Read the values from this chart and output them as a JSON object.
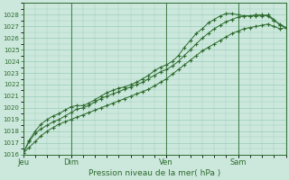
{
  "bg_color": "#cce8dc",
  "grid_color": "#99ccbb",
  "line_color": "#2d6a2d",
  "marker_color": "#2d6a2d",
  "xlabel": "Pression niveau de la mer( hPa )",
  "ylim": [
    1016,
    1029
  ],
  "yticks": [
    1016,
    1017,
    1018,
    1019,
    1020,
    1021,
    1022,
    1023,
    1024,
    1025,
    1026,
    1027,
    1028
  ],
  "day_labels": [
    "Jeu",
    "Dim",
    "Ven",
    "Sam"
  ],
  "day_positions": [
    0.0,
    0.182,
    0.545,
    0.818
  ],
  "total_hours": 264,
  "line1_x": [
    0,
    6,
    12,
    18,
    24,
    30,
    36,
    42,
    48,
    54,
    60,
    66,
    72,
    78,
    84,
    90,
    96,
    102,
    108,
    114,
    120,
    126,
    132,
    138,
    144,
    150,
    156,
    162,
    168,
    174,
    180,
    186,
    192,
    198,
    204,
    210,
    216,
    222,
    228,
    234,
    240,
    246,
    252,
    258,
    264
  ],
  "line1_y": [
    1016.1,
    1017.1,
    1017.8,
    1018.2,
    1018.5,
    1018.8,
    1019.0,
    1019.3,
    1019.6,
    1019.9,
    1020.0,
    1020.2,
    1020.5,
    1020.8,
    1021.0,
    1021.2,
    1021.4,
    1021.6,
    1021.8,
    1022.0,
    1022.2,
    1022.5,
    1022.8,
    1023.1,
    1023.3,
    1023.6,
    1024.0,
    1024.5,
    1025.0,
    1025.5,
    1026.0,
    1026.4,
    1026.8,
    1027.1,
    1027.4,
    1027.6,
    1027.8,
    1027.9,
    1027.9,
    1028.0,
    1028.0,
    1027.9,
    1027.5,
    1027.2,
    1026.9
  ],
  "line2_x": [
    0,
    6,
    12,
    18,
    24,
    30,
    36,
    42,
    48,
    54,
    60,
    66,
    72,
    78,
    84,
    90,
    96,
    102,
    108,
    114,
    120,
    126,
    132,
    138,
    144,
    150,
    156,
    162,
    168,
    174,
    180,
    186,
    192,
    198,
    204,
    210,
    216,
    222,
    228,
    234,
    240,
    246,
    252,
    258,
    264
  ],
  "line2_y": [
    1016.1,
    1017.2,
    1018.0,
    1018.6,
    1019.0,
    1019.3,
    1019.5,
    1019.8,
    1020.1,
    1020.2,
    1020.2,
    1020.4,
    1020.7,
    1021.0,
    1021.3,
    1021.5,
    1021.7,
    1021.8,
    1022.0,
    1022.2,
    1022.5,
    1022.8,
    1023.2,
    1023.5,
    1023.7,
    1024.0,
    1024.5,
    1025.2,
    1025.8,
    1026.4,
    1026.8,
    1027.3,
    1027.6,
    1027.9,
    1028.1,
    1028.1,
    1028.0,
    1027.9,
    1027.9,
    1027.9,
    1027.9,
    1028.0,
    1027.6,
    1027.1,
    1026.9
  ],
  "line3_x": [
    0,
    6,
    12,
    18,
    24,
    30,
    36,
    42,
    48,
    54,
    60,
    66,
    72,
    78,
    84,
    90,
    96,
    102,
    108,
    114,
    120,
    126,
    132,
    138,
    144,
    150,
    156,
    162,
    168,
    174,
    180,
    186,
    192,
    198,
    204,
    210,
    216,
    222,
    228,
    234,
    240,
    246,
    252,
    258,
    264
  ],
  "line3_y": [
    1016.1,
    1016.6,
    1017.1,
    1017.6,
    1018.0,
    1018.3,
    1018.6,
    1018.8,
    1019.0,
    1019.2,
    1019.4,
    1019.6,
    1019.8,
    1020.0,
    1020.2,
    1020.4,
    1020.6,
    1020.8,
    1021.0,
    1021.2,
    1021.4,
    1021.6,
    1021.9,
    1022.2,
    1022.5,
    1022.9,
    1023.3,
    1023.7,
    1024.1,
    1024.5,
    1024.9,
    1025.2,
    1025.5,
    1025.8,
    1026.1,
    1026.4,
    1026.6,
    1026.8,
    1026.9,
    1027.0,
    1027.1,
    1027.2,
    1027.0,
    1026.8,
    1026.9
  ],
  "xmin": 0,
  "xmax": 264
}
